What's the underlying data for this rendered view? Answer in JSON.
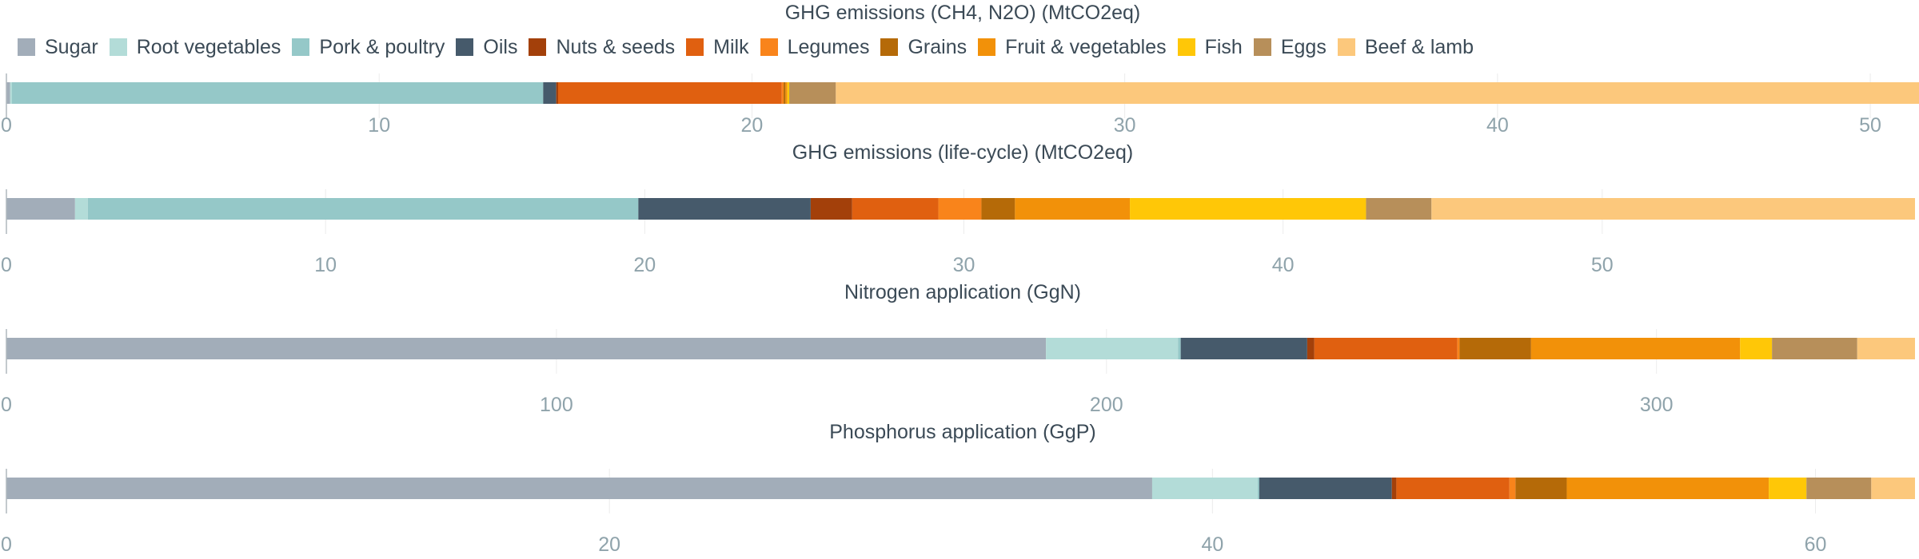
{
  "legend": [
    {
      "name": "Sugar",
      "color": "#a2adb9"
    },
    {
      "name": "Root vegetables",
      "color": "#b3dcd8"
    },
    {
      "name": "Pork & poultry",
      "color": "#95c8c8"
    },
    {
      "name": "Oils",
      "color": "#465a6b"
    },
    {
      "name": "Nuts & seeds",
      "color": "#a3400a"
    },
    {
      "name": "Milk",
      "color": "#e06010"
    },
    {
      "name": "Legumes",
      "color": "#f9841b"
    },
    {
      "name": "Grains",
      "color": "#b56a08"
    },
    {
      "name": "Fruit & vegetables",
      "color": "#f29109"
    },
    {
      "name": "Fish",
      "color": "#ffc707"
    },
    {
      "name": "Eggs",
      "color": "#b78f5a"
    },
    {
      "name": "Beef & lamb",
      "color": "#fcc87c"
    }
  ],
  "chart_data": [
    {
      "type": "bar",
      "orientation": "horizontal-stacked",
      "title": "GHG emissions (CH4, N2O) (MtCO2eq)",
      "xlim": [
        0,
        51.2
      ],
      "ticks": [
        0,
        10,
        20,
        30,
        40,
        50
      ],
      "series": [
        {
          "name": "Sugar",
          "value": 0.1
        },
        {
          "name": "Root vegetables",
          "value": 0.05
        },
        {
          "name": "Pork & poultry",
          "value": 14.25
        },
        {
          "name": "Oils",
          "value": 0.35
        },
        {
          "name": "Nuts & seeds",
          "value": 0.05
        },
        {
          "name": "Milk",
          "value": 6.0
        },
        {
          "name": "Legumes",
          "value": 0.05
        },
        {
          "name": "Grains",
          "value": 0.05
        },
        {
          "name": "Fruit & vegetables",
          "value": 0.05
        },
        {
          "name": "Fish",
          "value": 0.05
        },
        {
          "name": "Eggs",
          "value": 1.25
        },
        {
          "name": "Beef & lamb",
          "value": 29.1
        }
      ]
    },
    {
      "type": "bar",
      "orientation": "horizontal-stacked",
      "title": "GHG emissions (life-cycle) (MtCO2eq)",
      "xlim": [
        0,
        59.8
      ],
      "ticks": [
        0,
        10,
        20,
        30,
        40,
        50
      ],
      "series": [
        {
          "name": "Sugar",
          "value": 2.15
        },
        {
          "name": "Root vegetables",
          "value": 0.4
        },
        {
          "name": "Pork & poultry",
          "value": 17.25
        },
        {
          "name": "Oils",
          "value": 5.4
        },
        {
          "name": "Nuts & seeds",
          "value": 1.3
        },
        {
          "name": "Milk",
          "value": 2.7
        },
        {
          "name": "Legumes",
          "value": 1.35
        },
        {
          "name": "Grains",
          "value": 1.05
        },
        {
          "name": "Fruit & vegetables",
          "value": 3.6
        },
        {
          "name": "Fish",
          "value": 7.4
        },
        {
          "name": "Eggs",
          "value": 2.05
        },
        {
          "name": "Beef & lamb",
          "value": 15.15
        }
      ]
    },
    {
      "type": "bar",
      "orientation": "horizontal-stacked",
      "title": "Nitrogen application (GgN)",
      "xlim": [
        0,
        347
      ],
      "ticks": [
        0,
        100,
        200,
        300
      ],
      "series": [
        {
          "name": "Sugar",
          "value": 189
        },
        {
          "name": "Root vegetables",
          "value": 24
        },
        {
          "name": "Pork & poultry",
          "value": 0.5
        },
        {
          "name": "Oils",
          "value": 23
        },
        {
          "name": "Nuts & seeds",
          "value": 1.3
        },
        {
          "name": "Milk",
          "value": 26
        },
        {
          "name": "Legumes",
          "value": 0.4
        },
        {
          "name": "Grains",
          "value": 13
        },
        {
          "name": "Fruit & vegetables",
          "value": 38
        },
        {
          "name": "Fish",
          "value": 5.8
        },
        {
          "name": "Eggs",
          "value": 15.5
        },
        {
          "name": "Beef & lamb",
          "value": 10.5
        }
      ]
    },
    {
      "type": "bar",
      "orientation": "horizontal-stacked",
      "title": "Phosphorus application (GgP)",
      "xlim": [
        0,
        63.3
      ],
      "ticks": [
        0,
        20,
        40,
        60
      ],
      "series": [
        {
          "name": "Sugar",
          "value": 38.0
        },
        {
          "name": "Root vegetables",
          "value": 3.5
        },
        {
          "name": "Pork & poultry",
          "value": 0.05
        },
        {
          "name": "Oils",
          "value": 4.4
        },
        {
          "name": "Nuts & seeds",
          "value": 0.15
        },
        {
          "name": "Milk",
          "value": 3.75
        },
        {
          "name": "Legumes",
          "value": 0.2
        },
        {
          "name": "Grains",
          "value": 1.7
        },
        {
          "name": "Fruit & vegetables",
          "value": 6.7
        },
        {
          "name": "Fish",
          "value": 1.25
        },
        {
          "name": "Eggs",
          "value": 2.15
        },
        {
          "name": "Beef & lamb",
          "value": 1.45
        }
      ]
    }
  ]
}
